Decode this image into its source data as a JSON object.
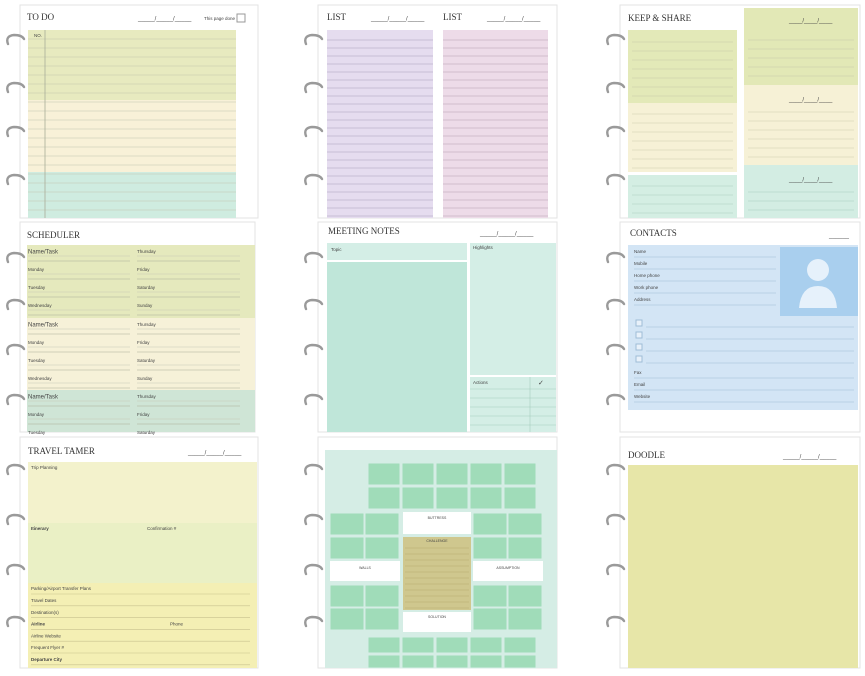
{
  "pages": [
    {
      "title": "TO DO",
      "date": "_____/_____/_____",
      "note": "This page done",
      "column_label": "NO."
    },
    {
      "titles": [
        "LIST",
        "LIST"
      ],
      "dates": [
        "_____/_____/_____",
        "_____/_____/_____"
      ]
    },
    {
      "title": "KEEP & SHARE",
      "dates": [
        "____/____/____",
        "____/____/____",
        "____/____/____"
      ]
    },
    {
      "title": "SCHEDULER",
      "blocks": [
        {
          "left": [
            "Name/Task",
            "Monday",
            "Tuesday",
            "Wednesday"
          ],
          "right": [
            "Thursday",
            "Friday",
            "Saturday",
            "Sunday"
          ]
        },
        {
          "left": [
            "Name/Task",
            "Monday",
            "Tuesday",
            "Wednesday"
          ],
          "right": [
            "Thursday",
            "Friday",
            "Saturday",
            "Sunday"
          ]
        },
        {
          "left": [
            "Name/Task",
            "Monday",
            "Tuesday"
          ],
          "right": [
            "Thursday",
            "Friday",
            "Saturday"
          ]
        }
      ]
    },
    {
      "title": "MEETING NOTES",
      "date": "_____/_____/_____",
      "topic": "Topic",
      "highlights": "Highlights",
      "actions": "Actions",
      "check": "✓"
    },
    {
      "title": "CONTACTS",
      "date": "______",
      "fields": [
        "Name",
        "Mobile",
        "Home phone",
        "Work phone",
        "Address"
      ],
      "more_fields": [
        "Fax",
        "Email",
        "Website"
      ]
    },
    {
      "title": "TRAVEL TAMER",
      "date": "_____/_____/_____",
      "trip_planning": "Trip Planning",
      "itinerary": "Itinerary",
      "confirmation": "Confirmation #",
      "details": [
        "Parking/Airport Transfer Plans",
        "Travel Dates",
        "Destination(s)",
        "Airline",
        "Airline Website",
        "Frequent Flyer #",
        "Departure City"
      ],
      "phone": "Phone"
    },
    {
      "labels": [
        "BUTTRESS",
        "WALLS",
        "CHALLENGE",
        "ASSUMPTION",
        "SOLUTION"
      ]
    },
    {
      "title": "DOODLE",
      "date": "_____/_____/_____"
    }
  ]
}
